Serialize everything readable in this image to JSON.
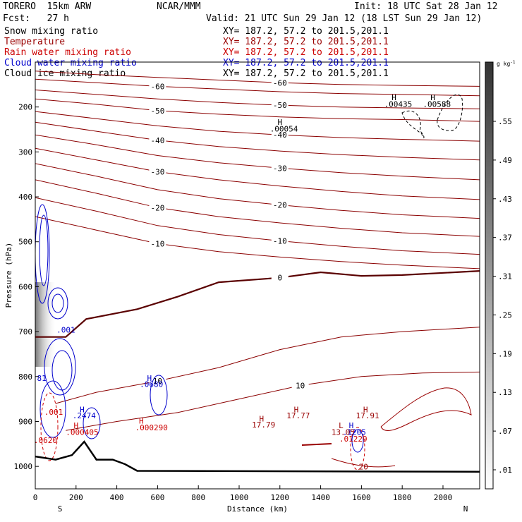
{
  "header": {
    "model": "TORERO  15km ARW",
    "org": "NCAR/MMM",
    "init": "Init: 18 UTC Sat 28 Jan 12",
    "fcst": "Fcst:   27 h",
    "valid": "Valid: 21 UTC Sun 29 Jan 12 (18 LST Sun 29 Jan 12)",
    "fields": [
      {
        "name": "Snow mixing ratio",
        "color": "#000000"
      },
      {
        "name": "Temperature",
        "color": "#990000"
      },
      {
        "name": "Rain water mixing ratio",
        "color": "#cc0000"
      },
      {
        "name": "Cloud water mixing ratio",
        "color": "#0000cc"
      },
      {
        "name": "Cloud ice mixing ratio",
        "color": "#000000"
      }
    ],
    "xy_line": "XY= 187.2, 57.2 to 201.5,201.1"
  },
  "chart_data": {
    "type": "cross-section contour",
    "xlabel": "Distance (km)",
    "ylabel": "Pressure (hPa)",
    "xlim": [
      0,
      2180
    ],
    "ylim": [
      1050,
      100
    ],
    "x_ticks": [
      "0",
      "200",
      "400",
      "600",
      "800",
      "1000",
      "1200",
      "1400",
      "1600",
      "1800",
      "2000"
    ],
    "y_ticks": [
      "200",
      "300",
      "400",
      "500",
      "600",
      "700",
      "800",
      "900",
      "1000"
    ],
    "x_end_labels": {
      "left": "S",
      "right": "N"
    },
    "colorbar": {
      "unit": "g kg",
      "unit_exp": "-1",
      "ticks": [
        ".01",
        ".07",
        ".13",
        ".19",
        ".25",
        ".31",
        ".37",
        ".43",
        ".49",
        ".55"
      ]
    },
    "temperature_contours": [
      {
        "level": -60,
        "label": "-60",
        "points": [
          [
            0,
            120
          ],
          [
            300,
            128
          ],
          [
            600,
            134
          ],
          [
            900,
            140
          ],
          [
            1200,
            146
          ],
          [
            1500,
            150
          ],
          [
            1800,
            152
          ],
          [
            2180,
            154
          ]
        ]
      },
      {
        "level": -60,
        "label": "-60",
        "points": [
          [
            0,
            138
          ],
          [
            300,
            146
          ],
          [
            600,
            154
          ],
          [
            900,
            160
          ],
          [
            1200,
            166
          ],
          [
            1500,
            170
          ],
          [
            1800,
            172
          ],
          [
            2180,
            175
          ]
        ]
      },
      {
        "level": -50,
        "label": "-50",
        "points": [
          [
            0,
            162
          ],
          [
            300,
            172
          ],
          [
            600,
            182
          ],
          [
            900,
            190
          ],
          [
            1200,
            196
          ],
          [
            1500,
            200
          ],
          [
            1800,
            202
          ],
          [
            2180,
            204
          ]
        ]
      },
      {
        "level": -50,
        "label": "-50",
        "points": [
          [
            0,
            182
          ],
          [
            300,
            194
          ],
          [
            600,
            208
          ],
          [
            900,
            216
          ],
          [
            1200,
            222
          ],
          [
            1500,
            226
          ],
          [
            1800,
            228
          ],
          [
            2180,
            232
          ]
        ]
      },
      {
        "level": -40,
        "label": "-40",
        "points": [
          [
            0,
            210
          ],
          [
            300,
            226
          ],
          [
            600,
            242
          ],
          [
            900,
            254
          ],
          [
            1200,
            262
          ],
          [
            1500,
            268
          ],
          [
            1800,
            272
          ],
          [
            2180,
            276
          ]
        ]
      },
      {
        "level": -40,
        "label": "-40",
        "points": [
          [
            0,
            234
          ],
          [
            300,
            254
          ],
          [
            600,
            274
          ],
          [
            900,
            288
          ],
          [
            1200,
            298
          ],
          [
            1500,
            306
          ],
          [
            1800,
            312
          ],
          [
            2180,
            318
          ]
        ]
      },
      {
        "level": -30,
        "label": "-30",
        "points": [
          [
            0,
            262
          ],
          [
            300,
            284
          ],
          [
            600,
            308
          ],
          [
            900,
            324
          ],
          [
            1200,
            336
          ],
          [
            1500,
            346
          ],
          [
            1800,
            354
          ],
          [
            2180,
            362
          ]
        ]
      },
      {
        "level": -30,
        "label": "-30",
        "points": [
          [
            0,
            292
          ],
          [
            300,
            318
          ],
          [
            600,
            344
          ],
          [
            900,
            362
          ],
          [
            1200,
            376
          ],
          [
            1500,
            388
          ],
          [
            1800,
            398
          ],
          [
            2180,
            406
          ]
        ]
      },
      {
        "level": -20,
        "label": "-20",
        "points": [
          [
            0,
            326
          ],
          [
            300,
            354
          ],
          [
            600,
            384
          ],
          [
            900,
            404
          ],
          [
            1200,
            418
          ],
          [
            1500,
            430
          ],
          [
            1800,
            440
          ],
          [
            2180,
            448
          ]
        ]
      },
      {
        "level": -20,
        "label": "-20",
        "points": [
          [
            0,
            362
          ],
          [
            300,
            392
          ],
          [
            600,
            424
          ],
          [
            900,
            444
          ],
          [
            1200,
            458
          ],
          [
            1500,
            470
          ],
          [
            1800,
            480
          ],
          [
            2180,
            488
          ]
        ]
      },
      {
        "level": -10,
        "label": "-10",
        "points": [
          [
            0,
            402
          ],
          [
            300,
            432
          ],
          [
            600,
            464
          ],
          [
            900,
            484
          ],
          [
            1200,
            498
          ],
          [
            1500,
            510
          ],
          [
            1800,
            520
          ],
          [
            2180,
            528
          ]
        ]
      },
      {
        "level": -10,
        "label": "-10",
        "points": [
          [
            0,
            444
          ],
          [
            300,
            474
          ],
          [
            600,
            504
          ],
          [
            900,
            522
          ],
          [
            1200,
            534
          ],
          [
            1500,
            544
          ],
          [
            1800,
            552
          ],
          [
            2180,
            560
          ]
        ]
      },
      {
        "level": 0,
        "label": "0",
        "points": [
          [
            0,
            712
          ],
          [
            150,
            712
          ],
          [
            250,
            672
          ],
          [
            500,
            650
          ],
          [
            700,
            622
          ],
          [
            900,
            590
          ],
          [
            1200,
            580
          ],
          [
            1400,
            568
          ],
          [
            1600,
            576
          ],
          [
            1800,
            574
          ],
          [
            2180,
            565
          ]
        ]
      },
      {
        "level": 10,
        "label": "10",
        "points": [
          [
            100,
            860
          ],
          [
            300,
            835
          ],
          [
            600,
            810
          ],
          [
            900,
            780
          ],
          [
            1200,
            740
          ],
          [
            1500,
            712
          ],
          [
            1800,
            700
          ],
          [
            2180,
            690
          ]
        ]
      },
      {
        "level": 10,
        "label": "10",
        "points": [
          [
            150,
            920
          ],
          [
            400,
            900
          ],
          [
            700,
            880
          ],
          [
            1000,
            850
          ],
          [
            1300,
            820
          ],
          [
            1600,
            800
          ],
          [
            1900,
            792
          ],
          [
            2180,
            790
          ]
        ]
      }
    ],
    "zero_isotherm_label": "0",
    "terrain_pressure": [
      [
        0,
        978
      ],
      [
        100,
        985
      ],
      [
        180,
        975
      ],
      [
        240,
        945
      ],
      [
        300,
        985
      ],
      [
        380,
        985
      ],
      [
        440,
        995
      ],
      [
        500,
        1010
      ],
      [
        2180,
        1012
      ]
    ],
    "annotations": [
      {
        "text": "H",
        "x": 1200,
        "p": 240,
        "color": "#000000"
      },
      {
        "text": ".00054",
        "x": 1220,
        "p": 255,
        "color": "#000000"
      },
      {
        "text": "H",
        "x": 1760,
        "p": 185,
        "color": "#000000"
      },
      {
        "text": ".00435",
        "x": 1780,
        "p": 200,
        "color": "#000000"
      },
      {
        "text": "H",
        "x": 1950,
        "p": 185,
        "color": "#000000"
      },
      {
        "text": ".00588",
        "x": 1970,
        "p": 200,
        "color": "#000000"
      },
      {
        "text": "H",
        "x": 560,
        "p": 810,
        "color": "#0000cc"
      },
      {
        "text": ".0680",
        "x": 570,
        "p": 823,
        "color": "#0000cc"
      },
      {
        "text": ".001",
        "x": 150,
        "p": 702,
        "color": "#0000cc"
      },
      {
        "text": "H",
        "x": 230,
        "p": 880,
        "color": "#0000cc"
      },
      {
        "text": ".2474",
        "x": 240,
        "p": 893,
        "color": "#0000cc"
      },
      {
        "text": ".81",
        "x": 20,
        "p": 810,
        "color": "#0000cc"
      },
      {
        "text": ".001",
        "x": 90,
        "p": 885,
        "color": "#cc0000"
      },
      {
        "text": "H",
        "x": 200,
        "p": 915,
        "color": "#cc0000"
      },
      {
        "text": ".000405",
        "x": 230,
        "p": 930,
        "color": "#cc0000"
      },
      {
        "text": "H",
        "x": 520,
        "p": 905,
        "color": "#cc0000"
      },
      {
        "text": ".000290",
        "x": 570,
        "p": 920,
        "color": "#cc0000"
      },
      {
        "text": ".0620",
        "x": 50,
        "p": 948,
        "color": "#cc0000"
      },
      {
        "text": "H",
        "x": 1110,
        "p": 900,
        "color": "#990000"
      },
      {
        "text": "17.79",
        "x": 1120,
        "p": 913,
        "color": "#990000"
      },
      {
        "text": "H",
        "x": 1280,
        "p": 880,
        "color": "#990000"
      },
      {
        "text": "17.77",
        "x": 1290,
        "p": 893,
        "color": "#990000"
      },
      {
        "text": "H",
        "x": 1620,
        "p": 880,
        "color": "#990000"
      },
      {
        "text": "17.91",
        "x": 1630,
        "p": 893,
        "color": "#990000"
      },
      {
        "text": "L",
        "x": 1500,
        "p": 915,
        "color": "#990000"
      },
      {
        "text": "13.05",
        "x": 1510,
        "p": 930,
        "color": "#990000"
      },
      {
        "text": "H",
        "x": 1550,
        "p": 915,
        "color": "#0000cc"
      },
      {
        "text": ".1205",
        "x": 1565,
        "p": 930,
        "color": "#0000cc"
      },
      {
        "text": ".01229",
        "x": 1560,
        "p": 945,
        "color": "#cc0000"
      },
      {
        "text": "20",
        "x": 1610,
        "p": 1007,
        "color": "#990000"
      }
    ]
  }
}
